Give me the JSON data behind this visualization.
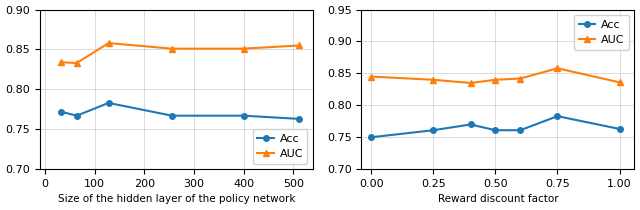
{
  "left": {
    "x": [
      32,
      64,
      128,
      256,
      400,
      512
    ],
    "acc": [
      0.772,
      0.767,
      0.783,
      0.767,
      0.767,
      0.763
    ],
    "auc": [
      0.834,
      0.833,
      0.858,
      0.851,
      0.851,
      0.855
    ],
    "xlabel": "Size of the hidden layer of the policy network",
    "ylim": [
      0.7,
      0.9
    ],
    "yticks": [
      0.7,
      0.75,
      0.8,
      0.85,
      0.9
    ],
    "xlim": [
      -10,
      540
    ],
    "xticks": [
      0,
      100,
      200,
      300,
      400,
      500
    ]
  },
  "right": {
    "x": [
      0.0,
      0.25,
      0.4,
      0.5,
      0.6,
      0.75,
      1.0
    ],
    "acc": [
      0.75,
      0.761,
      0.77,
      0.761,
      0.761,
      0.783,
      0.763
    ],
    "auc": [
      0.845,
      0.84,
      0.835,
      0.84,
      0.842,
      0.858,
      0.836
    ],
    "xlabel": "Reward discount factor",
    "ylim": [
      0.7,
      0.95
    ],
    "yticks": [
      0.7,
      0.75,
      0.8,
      0.85,
      0.9,
      0.95
    ],
    "xlim": [
      -0.04,
      1.06
    ],
    "xticks": [
      0.0,
      0.25,
      0.5,
      0.75,
      1.0
    ]
  },
  "acc_color": "#1f77b4",
  "auc_color": "#ff7f0e",
  "acc_label": "Acc",
  "auc_label": "AUC",
  "acc_marker": "o",
  "auc_marker": "^",
  "figsize": [
    6.4,
    2.1
  ],
  "dpi": 100
}
